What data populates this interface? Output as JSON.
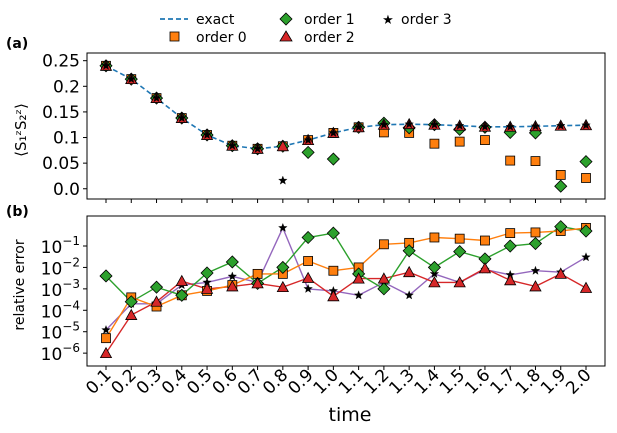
{
  "legend": {
    "entries": [
      {
        "key": "exact",
        "label": "exact"
      },
      {
        "key": "order0",
        "label": "order 0"
      },
      {
        "key": "order1",
        "label": "order 1"
      },
      {
        "key": "order2",
        "label": "order 2"
      },
      {
        "key": "order3",
        "label": "order 3"
      }
    ],
    "placement": "top, above panel (a)"
  },
  "colors": {
    "exact": "#1f77b4",
    "order0": "#ff7f0e",
    "order1": "#2ca02c",
    "order2": "#d62728",
    "order3": "#9467bd",
    "axis": "#000000"
  },
  "chart_data": [
    {
      "panel": "(a)",
      "type": "line",
      "ylabel": "⟨S₁ᶻS₂ᶻ⟩",
      "ylim": [
        -0.02,
        0.265
      ],
      "yticks": [
        0.0,
        0.05,
        0.1,
        0.15,
        0.2,
        0.25
      ],
      "ytick_labels": [
        "0.0",
        "0.05",
        "0.1",
        "0.15",
        "0.2",
        "0.25"
      ],
      "x": [
        0.1,
        0.2,
        0.3,
        0.4,
        0.5,
        0.6,
        0.7,
        0.8,
        0.9,
        1.0,
        1.1,
        1.2,
        1.3,
        1.4,
        1.5,
        1.6,
        1.7,
        1.8,
        1.9,
        2.0
      ],
      "series": [
        {
          "key": "exact",
          "name": "exact",
          "style": "dashed line",
          "values": [
            0.24,
            0.214,
            0.177,
            0.138,
            0.105,
            0.084,
            0.078,
            0.083,
            0.095,
            0.109,
            0.12,
            0.125,
            0.126,
            0.125,
            0.123,
            0.121,
            0.121,
            0.122,
            0.123,
            0.124
          ]
        },
        {
          "key": "order0",
          "name": "order 0",
          "marker": "square",
          "values": [
            0.24,
            0.214,
            0.177,
            0.138,
            0.105,
            0.084,
            0.078,
            0.083,
            0.095,
            0.109,
            0.12,
            0.11,
            0.109,
            0.088,
            0.092,
            0.095,
            0.055,
            0.054,
            0.027,
            0.021
          ]
        },
        {
          "key": "order1",
          "name": "order 1",
          "marker": "diamond",
          "values": [
            0.24,
            0.214,
            0.177,
            0.138,
            0.105,
            0.084,
            0.078,
            0.083,
            0.071,
            0.058,
            0.12,
            0.128,
            0.119,
            0.125,
            0.116,
            0.12,
            0.11,
            0.109,
            0.005,
            0.053
          ]
        },
        {
          "key": "order2",
          "name": "order 2",
          "marker": "triangle",
          "values": [
            0.24,
            0.214,
            0.177,
            0.138,
            0.105,
            0.084,
            0.078,
            0.083,
            0.095,
            0.109,
            0.12,
            0.125,
            0.126,
            0.125,
            0.123,
            0.121,
            0.121,
            0.122,
            0.123,
            0.124
          ]
        },
        {
          "key": "order3",
          "name": "order 3",
          "marker": "star",
          "values": [
            0.24,
            0.214,
            0.177,
            0.138,
            0.105,
            0.084,
            0.078,
            0.016,
            0.095,
            0.109,
            0.12,
            0.125,
            0.126,
            0.125,
            0.123,
            0.121,
            0.121,
            0.122,
            0.123,
            0.124
          ]
        }
      ]
    },
    {
      "panel": "(b)",
      "type": "line",
      "ylabel": "relative error",
      "xlabel": "time",
      "yscale": "log",
      "ylim_log10": [
        -6.6,
        0.4
      ],
      "yticks_log10": [
        -6,
        -5,
        -4,
        -3,
        -2,
        -1
      ],
      "ytick_labels": [
        {
          "base": "10",
          "exp": "−6"
        },
        {
          "base": "10",
          "exp": "−5"
        },
        {
          "base": "10",
          "exp": "−4"
        },
        {
          "base": "10",
          "exp": "−3"
        },
        {
          "base": "10",
          "exp": "−2"
        },
        {
          "base": "10",
          "exp": "−1"
        }
      ],
      "xtick_labels": [
        "0.1",
        "0.2",
        "0.3",
        "0.4",
        "0.5",
        "0.6",
        "0.7",
        "0.8",
        "0.9",
        "1.0",
        "1.1",
        "1.2",
        "1.3",
        "1.4",
        "1.5",
        "1.6",
        "1.7",
        "1.8",
        "1.9",
        "2.0"
      ],
      "x": [
        0.1,
        0.2,
        0.3,
        0.4,
        0.5,
        0.6,
        0.7,
        0.8,
        0.9,
        1.0,
        1.1,
        1.2,
        1.3,
        1.4,
        1.5,
        1.6,
        1.7,
        1.8,
        1.9,
        2.0
      ],
      "series": [
        {
          "key": "order0",
          "name": "order 0",
          "marker": "square",
          "values": [
            5e-06,
            0.0004,
            0.00015,
            0.0005,
            0.0008,
            0.0015,
            0.005,
            0.005,
            0.02,
            0.007,
            0.01,
            0.12,
            0.14,
            0.25,
            0.22,
            0.18,
            0.4,
            0.43,
            0.5,
            0.7
          ]
        },
        {
          "key": "order1",
          "name": "order 1",
          "marker": "diamond",
          "values": [
            0.004,
            0.00025,
            0.0012,
            0.0005,
            0.0055,
            0.018,
            0.0018,
            0.01,
            0.25,
            0.4,
            0.005,
            0.001,
            0.06,
            0.01,
            0.055,
            0.025,
            0.1,
            0.13,
            0.8,
            0.5
          ]
        },
        {
          "key": "order2",
          "name": "order 2",
          "marker": "triangle",
          "values": [
            1e-06,
            6e-05,
            0.00025,
            0.0023,
            0.001,
            0.0013,
            0.0018,
            0.0012,
            0.0032,
            0.00045,
            0.003,
            0.003,
            0.006,
            0.002,
            0.002,
            0.009,
            0.0025,
            0.0013,
            0.005,
            0.0011
          ]
        },
        {
          "key": "order3",
          "name": "order 3",
          "marker": "star",
          "values": [
            1.2e-05,
            0.0002,
            0.0002,
            0.0015,
            0.002,
            0.0038,
            0.002,
            0.7,
            0.001,
            0.0008,
            0.0005,
            0.002,
            0.0005,
            0.005,
            0.002,
            0.008,
            0.0045,
            0.007,
            0.006,
            0.03
          ]
        }
      ]
    }
  ]
}
